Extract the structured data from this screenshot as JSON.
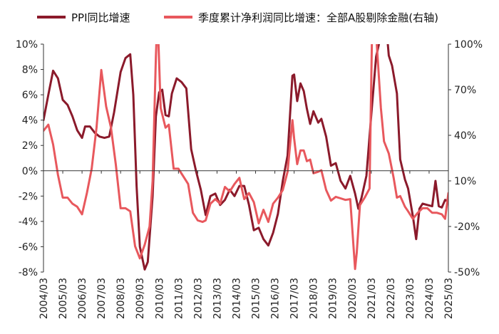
{
  "chart_data": {
    "type": "line",
    "x_ticks": [
      "2004/03",
      "2005/03",
      "2006/03",
      "2007/03",
      "2008/03",
      "2009/03",
      "2010/03",
      "2011/03",
      "2012/03",
      "2013/03",
      "2014/03",
      "2015/03",
      "2016/03",
      "2017/03",
      "2018/03",
      "2019/03",
      "2020/03",
      "2021/03",
      "2022/03",
      "2023/03",
      "2024/03",
      "2025/03"
    ],
    "y_left": {
      "min": -8,
      "max": 10,
      "step": 2,
      "ticks": [
        "-8%",
        "-6%",
        "-4%",
        "-2%",
        "0%",
        "2%",
        "4%",
        "6%",
        "8%",
        "10%"
      ]
    },
    "y_right": {
      "min": -50,
      "max": 100,
      "step": 30,
      "ticks": [
        "-50%",
        "-20%",
        "10%",
        "40%",
        "70%",
        "100%"
      ]
    },
    "legend_position": "top",
    "grid": false,
    "series": [
      {
        "name": "PPI同比增速",
        "axis": "left",
        "color": "#8b1a2b",
        "points": [
          [
            2004.17,
            4.0
          ],
          [
            2004.42,
            6.0
          ],
          [
            2004.67,
            7.9
          ],
          [
            2004.92,
            7.3
          ],
          [
            2005.17,
            5.6
          ],
          [
            2005.42,
            5.2
          ],
          [
            2005.67,
            4.3
          ],
          [
            2005.92,
            3.2
          ],
          [
            2006.17,
            2.6
          ],
          [
            2006.33,
            3.5
          ],
          [
            2006.58,
            3.5
          ],
          [
            2006.83,
            3.0
          ],
          [
            2007.08,
            2.7
          ],
          [
            2007.33,
            2.6
          ],
          [
            2007.58,
            2.7
          ],
          [
            2007.83,
            4.6
          ],
          [
            2008.17,
            7.8
          ],
          [
            2008.42,
            8.9
          ],
          [
            2008.67,
            9.2
          ],
          [
            2008.83,
            6.0
          ],
          [
            2009.0,
            -1.2
          ],
          [
            2009.17,
            -6.0
          ],
          [
            2009.42,
            -7.8
          ],
          [
            2009.58,
            -7.2
          ],
          [
            2009.83,
            -2.0
          ],
          [
            2010.0,
            4.3
          ],
          [
            2010.17,
            6.2
          ],
          [
            2010.33,
            6.4
          ],
          [
            2010.5,
            4.4
          ],
          [
            2010.67,
            4.3
          ],
          [
            2010.83,
            6.1
          ],
          [
            2011.08,
            7.3
          ],
          [
            2011.33,
            7.0
          ],
          [
            2011.58,
            6.5
          ],
          [
            2011.83,
            1.7
          ],
          [
            2012.08,
            0.0
          ],
          [
            2012.33,
            -1.5
          ],
          [
            2012.58,
            -3.5
          ],
          [
            2012.83,
            -2.0
          ],
          [
            2013.08,
            -1.8
          ],
          [
            2013.33,
            -2.7
          ],
          [
            2013.58,
            -2.3
          ],
          [
            2013.83,
            -1.5
          ],
          [
            2014.08,
            -2.0
          ],
          [
            2014.33,
            -1.2
          ],
          [
            2014.58,
            -1.2
          ],
          [
            2014.83,
            -2.7
          ],
          [
            2015.08,
            -4.7
          ],
          [
            2015.33,
            -4.5
          ],
          [
            2015.58,
            -5.4
          ],
          [
            2015.83,
            -5.9
          ],
          [
            2016.08,
            -4.9
          ],
          [
            2016.33,
            -3.4
          ],
          [
            2016.58,
            -0.8
          ],
          [
            2016.83,
            1.2
          ],
          [
            2017.08,
            7.5
          ],
          [
            2017.17,
            7.6
          ],
          [
            2017.33,
            5.5
          ],
          [
            2017.5,
            6.9
          ],
          [
            2017.67,
            6.3
          ],
          [
            2017.83,
            4.9
          ],
          [
            2018.0,
            3.7
          ],
          [
            2018.17,
            4.7
          ],
          [
            2018.42,
            3.8
          ],
          [
            2018.58,
            4.1
          ],
          [
            2018.83,
            2.7
          ],
          [
            2019.08,
            0.4
          ],
          [
            2019.33,
            0.6
          ],
          [
            2019.58,
            -0.8
          ],
          [
            2019.83,
            -1.4
          ],
          [
            2020.08,
            -0.4
          ],
          [
            2020.33,
            -1.8
          ],
          [
            2020.5,
            -3.0
          ],
          [
            2020.67,
            -2.1
          ],
          [
            2020.92,
            -0.4
          ],
          [
            2021.17,
            4.4
          ],
          [
            2021.42,
            9.0
          ],
          [
            2021.67,
            10.7
          ],
          [
            2021.83,
            13.5
          ],
          [
            2022.08,
            9.1
          ],
          [
            2022.25,
            8.3
          ],
          [
            2022.5,
            6.1
          ],
          [
            2022.67,
            0.9
          ],
          [
            2022.92,
            -0.7
          ],
          [
            2023.08,
            -1.4
          ],
          [
            2023.33,
            -3.6
          ],
          [
            2023.5,
            -5.4
          ],
          [
            2023.67,
            -3.0
          ],
          [
            2023.83,
            -2.6
          ],
          [
            2024.08,
            -2.7
          ],
          [
            2024.33,
            -2.8
          ],
          [
            2024.5,
            -0.8
          ],
          [
            2024.67,
            -2.8
          ],
          [
            2024.83,
            -2.9
          ],
          [
            2025.0,
            -2.3
          ],
          [
            2025.17,
            -2.4
          ]
        ]
      },
      {
        "name": "季度累计净利润同比增速：全部A股剔除金融(右轴)",
        "axis": "right",
        "color": "#e8585d",
        "points": [
          [
            2004.17,
            43
          ],
          [
            2004.42,
            47
          ],
          [
            2004.67,
            34
          ],
          [
            2004.92,
            14
          ],
          [
            2005.17,
            -1
          ],
          [
            2005.42,
            -1
          ],
          [
            2005.67,
            -5
          ],
          [
            2005.92,
            -7
          ],
          [
            2006.17,
            -12
          ],
          [
            2006.42,
            2
          ],
          [
            2006.67,
            18
          ],
          [
            2006.92,
            45
          ],
          [
            2007.17,
            83
          ],
          [
            2007.42,
            59
          ],
          [
            2007.67,
            45
          ],
          [
            2007.92,
            21
          ],
          [
            2008.17,
            -8
          ],
          [
            2008.42,
            -8
          ],
          [
            2008.67,
            -10
          ],
          [
            2008.92,
            -33
          ],
          [
            2009.17,
            -41
          ],
          [
            2009.42,
            -32
          ],
          [
            2009.67,
            -20
          ],
          [
            2009.83,
            10
          ],
          [
            2010.0,
            92
          ],
          [
            2010.08,
            120
          ],
          [
            2010.25,
            58
          ],
          [
            2010.5,
            45
          ],
          [
            2010.67,
            47
          ],
          [
            2010.92,
            18
          ],
          [
            2011.17,
            18
          ],
          [
            2011.42,
            13
          ],
          [
            2011.67,
            8
          ],
          [
            2011.92,
            -11
          ],
          [
            2012.17,
            -16
          ],
          [
            2012.42,
            -17
          ],
          [
            2012.58,
            -16
          ],
          [
            2012.83,
            -5
          ],
          [
            2013.08,
            -2
          ],
          [
            2013.33,
            -5
          ],
          [
            2013.58,
            6
          ],
          [
            2013.83,
            3
          ],
          [
            2014.08,
            8
          ],
          [
            2014.33,
            12
          ],
          [
            2014.58,
            -2
          ],
          [
            2014.83,
            2
          ],
          [
            2015.08,
            -4
          ],
          [
            2015.33,
            -18
          ],
          [
            2015.58,
            -9
          ],
          [
            2015.83,
            -17
          ],
          [
            2016.08,
            -5
          ],
          [
            2016.33,
            -1
          ],
          [
            2016.58,
            4
          ],
          [
            2016.83,
            16
          ],
          [
            2017.08,
            50
          ],
          [
            2017.17,
            38
          ],
          [
            2017.33,
            21
          ],
          [
            2017.5,
            30
          ],
          [
            2017.67,
            30
          ],
          [
            2017.83,
            23
          ],
          [
            2018.0,
            24
          ],
          [
            2018.17,
            15
          ],
          [
            2018.42,
            16
          ],
          [
            2018.58,
            17
          ],
          [
            2018.83,
            4
          ],
          [
            2019.08,
            -3
          ],
          [
            2019.33,
            -0.5
          ],
          [
            2019.58,
            -1.5
          ],
          [
            2019.83,
            -2.5
          ],
          [
            2020.08,
            -2
          ],
          [
            2020.33,
            -48
          ],
          [
            2020.42,
            -37
          ],
          [
            2020.58,
            -6
          ],
          [
            2020.83,
            -1
          ],
          [
            2021.08,
            5
          ],
          [
            2021.25,
            140
          ],
          [
            2021.42,
            107
          ],
          [
            2021.67,
            58
          ],
          [
            2021.83,
            36
          ],
          [
            2022.08,
            28
          ],
          [
            2022.33,
            12
          ],
          [
            2022.5,
            -1
          ],
          [
            2022.67,
            0
          ],
          [
            2022.92,
            -7
          ],
          [
            2023.08,
            -10
          ],
          [
            2023.33,
            -15
          ],
          [
            2023.58,
            -11
          ],
          [
            2023.83,
            -8
          ],
          [
            2024.08,
            -8
          ],
          [
            2024.33,
            -11
          ],
          [
            2024.58,
            -11
          ],
          [
            2024.83,
            -12
          ],
          [
            2025.0,
            -15
          ],
          [
            2025.17,
            2
          ]
        ]
      }
    ]
  }
}
